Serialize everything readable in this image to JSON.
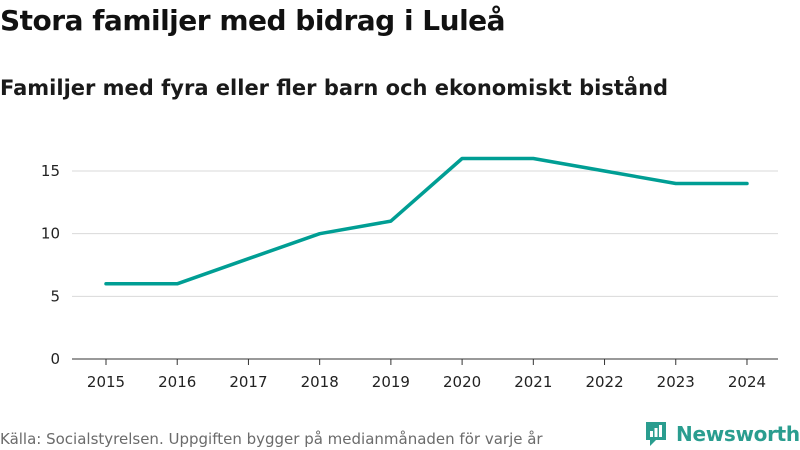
{
  "title": "Stora familjer med bidrag i Luleå",
  "subtitle": "Familjer med fyra eller fler barn och ekonomiskt bistånd",
  "source": "Källa: Socialstyrelsen. Uppgiften bygger på medianmånaden för varje år",
  "logo": {
    "text": "Newsworthy",
    "icon": "newsworthy-logo-icon",
    "color": "#2a9d8f"
  },
  "chart_data": {
    "type": "line",
    "title": "Stora familjer med bidrag i Luleå",
    "subtitle": "Familjer med fyra eller fler barn och ekonomiskt bistånd",
    "xlabel": "",
    "ylabel": "",
    "categories": [
      "2015",
      "2016",
      "2017",
      "2018",
      "2019",
      "2020",
      "2021",
      "2022",
      "2023",
      "2024"
    ],
    "series": [
      {
        "name": "Familjer",
        "values": [
          6,
          6,
          8,
          10,
          11,
          16,
          16,
          15,
          14,
          14
        ],
        "color": "#009e94"
      }
    ],
    "ylim": [
      0,
      17
    ],
    "yticks": [
      0,
      5,
      10,
      15
    ],
    "ytick_labels": [
      "0",
      "5",
      "10",
      "15"
    ],
    "grid": true,
    "legend": "none"
  }
}
